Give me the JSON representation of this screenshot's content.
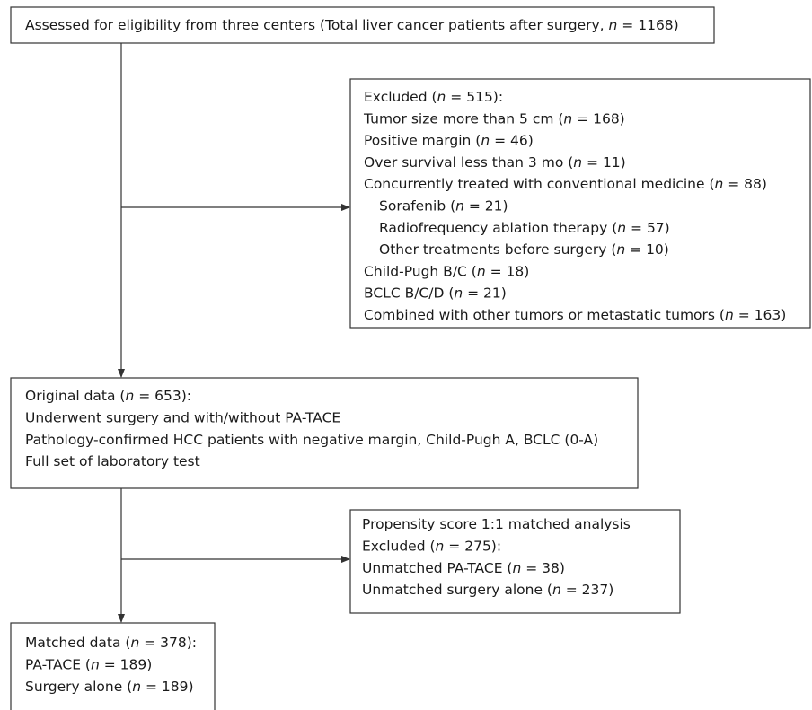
{
  "boxes": [
    {
      "lines": [
        [
          "Assessed for eligibility from three centers (Total liver cancer patients after surgery, ",
          "n",
          " = 1168)"
        ]
      ]
    },
    {
      "lines": [
        [
          "Excluded (",
          "n",
          " = 515):"
        ],
        [
          "Tumor size more than 5 cm (",
          "n",
          " = 168)"
        ],
        [
          "Positive margin (",
          "n",
          " = 46)"
        ],
        [
          "Over survival less than 3 mo (",
          "n",
          " = 11)"
        ],
        [
          "Concurrently treated with conventional medicine (",
          "n",
          " = 88)"
        ],
        [
          "Sorafenib (",
          "n",
          " = 21)"
        ],
        [
          "Radiofrequency ablation therapy (",
          "n",
          " = 57)"
        ],
        [
          "Other treatments before surgery (",
          "n",
          " = 10)"
        ],
        [
          "Child-Pugh B/C (",
          "n",
          " = 18)"
        ],
        [
          "BCLC B/C/D (",
          "n",
          " = 21)"
        ],
        [
          "Combined with other tumors or metastatic tumors (",
          "n",
          " = 163)"
        ]
      ]
    },
    {
      "lines": [
        [
          "Original data (",
          "n",
          " = 653):"
        ],
        [
          "Underwent surgery and with/without PA-TACE"
        ],
        [
          "Pathology-confirmed HCC patients with negative margin, Child-Pugh A, BCLC (0-A)"
        ],
        [
          "Full set of laboratory test"
        ]
      ]
    },
    {
      "lines": [
        [
          "Propensity score 1:1 matched analysis"
        ],
        [
          "Excluded (",
          "n",
          " = 275):"
        ],
        [
          "Unmatched PA-TACE (",
          "n",
          " = 38)"
        ],
        [
          "Unmatched surgery alone (",
          "n",
          " = 237)"
        ]
      ]
    },
    {
      "lines": [
        [
          "Matched data (",
          "n",
          " = 378):"
        ],
        [
          "PA-TACE (",
          "n",
          " = 189)"
        ],
        [
          "Surgery alone (",
          "n",
          " = 189)"
        ]
      ]
    }
  ]
}
